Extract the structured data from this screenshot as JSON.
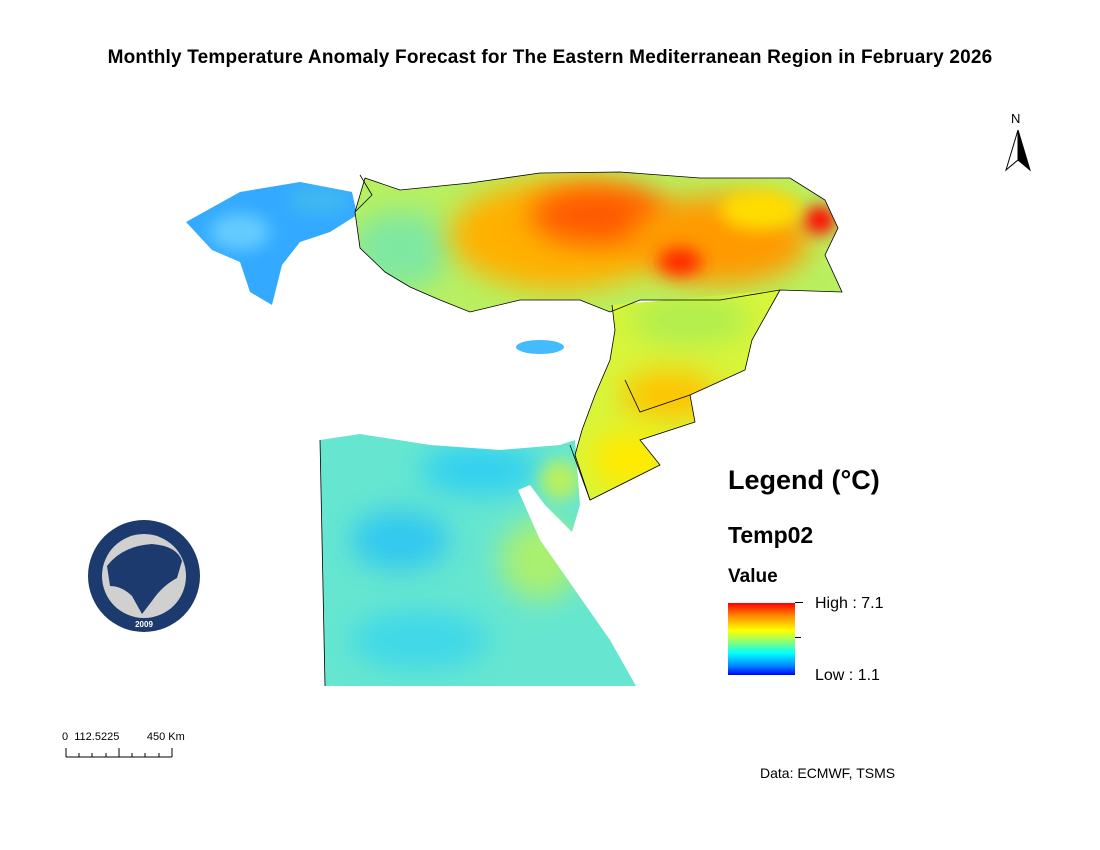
{
  "title": "Monthly Temperature Anomaly Forecast  for The Eastern Mediterranean Region in February 2026",
  "legend": {
    "title": "Legend (°C)",
    "layer": "Temp02",
    "field": "Value",
    "high_label": "High : 7.1",
    "low_label": "Low : 1.1",
    "high": 7.1,
    "low": 1.1,
    "colors": [
      "#ff0000",
      "#ff8c00",
      "#ffff00",
      "#aaff55",
      "#00ffff",
      "#0080ff",
      "#0000ff"
    ]
  },
  "north_arrow": {
    "label": "N"
  },
  "scale_bar": {
    "zero": "0",
    "mid": "112.5225",
    "end": "450",
    "unit": "Km"
  },
  "logo": {
    "text": "EASTERN MEDITERRANEAN CLIMATE CENTRE",
    "year": "2009"
  },
  "data_source": "Data: ECMWF, TSMS"
}
